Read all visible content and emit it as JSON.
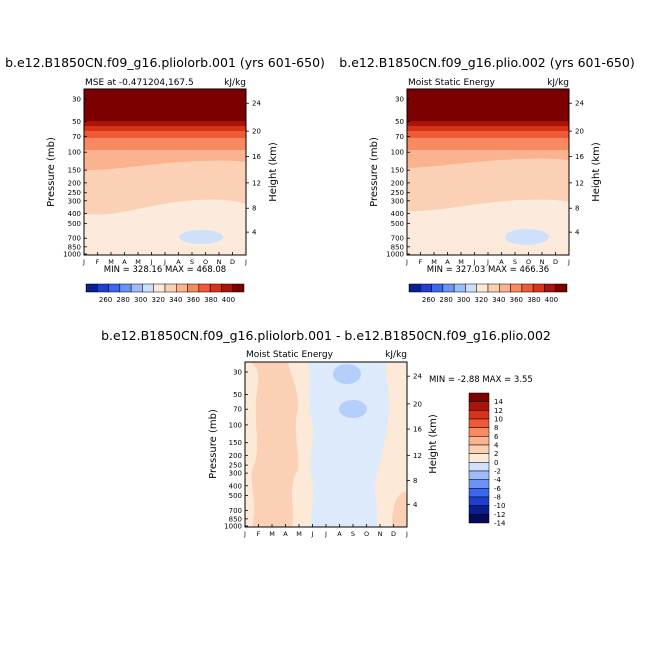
{
  "chart_data": [
    {
      "type": "heatmap",
      "title": "b.e12.B1850CN.f09_g16.pliolorb.001 (yrs 601-650)",
      "subtitle_left": "MSE at -0.471204,167.5",
      "subtitle_right": "kJ/kg",
      "xlabel": "",
      "ylabel": "Pressure (mb)",
      "ylabel_right": "Height (km)",
      "x_ticks": [
        "J",
        "F",
        "M",
        "A",
        "M",
        "J",
        "J",
        "A",
        "S",
        "O",
        "N",
        "D",
        "J"
      ],
      "y_ticks": [
        "30",
        "50",
        "70",
        "100",
        "150",
        "200",
        "250",
        "300",
        "400",
        "500",
        "700",
        "850",
        "1000"
      ],
      "y_ticks_right": [
        "24",
        "20",
        "16",
        "12",
        "8",
        "4"
      ],
      "minmax_text": "MIN = 328.16  MAX = 468.08",
      "legend_levels": [
        "260",
        "280",
        "300",
        "320",
        "340",
        "360",
        "380",
        "400"
      ],
      "variable": "Moist Static Energy"
    },
    {
      "type": "heatmap",
      "title": "b.e12.B1850CN.f09_g16.plio.002 (yrs 601-650)",
      "subtitle_left": "Moist Static Energy",
      "subtitle_right": "kJ/kg",
      "xlabel": "",
      "ylabel": "Pressure (mb)",
      "ylabel_right": "Height (km)",
      "x_ticks": [
        "J",
        "F",
        "M",
        "A",
        "M",
        "J",
        "J",
        "A",
        "S",
        "O",
        "N",
        "D",
        "J"
      ],
      "y_ticks": [
        "30",
        "50",
        "70",
        "100",
        "150",
        "200",
        "250",
        "300",
        "400",
        "500",
        "700",
        "850",
        "1000"
      ],
      "y_ticks_right": [
        "24",
        "20",
        "16",
        "12",
        "8",
        "4"
      ],
      "minmax_text": "MIN = 327.03  MAX = 466.36",
      "legend_levels": [
        "260",
        "280",
        "300",
        "320",
        "340",
        "360",
        "380",
        "400"
      ],
      "variable": "Moist Static Energy"
    },
    {
      "type": "heatmap",
      "title": "b.e12.B1850CN.f09_g16.pliolorb.001 - b.e12.B1850CN.f09_g16.plio.002",
      "subtitle_left": "Moist Static Energy",
      "subtitle_right": "kJ/kg",
      "xlabel": "",
      "ylabel": "Pressure (mb)",
      "ylabel_right": "Height (km)",
      "x_ticks": [
        "J",
        "F",
        "M",
        "A",
        "M",
        "J",
        "J",
        "A",
        "S",
        "O",
        "N",
        "D",
        "J"
      ],
      "y_ticks": [
        "30",
        "50",
        "70",
        "100",
        "150",
        "200",
        "250",
        "300",
        "400",
        "500",
        "700",
        "850",
        "1000"
      ],
      "y_ticks_right": [
        "24",
        "20",
        "16",
        "12",
        "8",
        "4"
      ],
      "minmax_text": "MIN =   -2.88  MAX =     3.55",
      "legend_levels": [
        "14",
        "12",
        "10",
        "8",
        "6",
        "4",
        "2",
        "0",
        "-2",
        "-4",
        "-6",
        "-8",
        "-10",
        "-12",
        "-14"
      ]
    }
  ],
  "colors": {
    "abs_scale": [
      "#0a1f8f",
      "#1f3fd0",
      "#3a66f0",
      "#6a93f5",
      "#9cbdf8",
      "#cfe0fb",
      "#fde9d8",
      "#fcd0b4",
      "#fbb28e",
      "#f88a62",
      "#ef5a36",
      "#d8321a",
      "#a81409",
      "#7d0000"
    ],
    "diff_scale": [
      "#7d0000",
      "#a81409",
      "#d8321a",
      "#ef5a36",
      "#f88a62",
      "#fbb28e",
      "#fcd0b4",
      "#fde9d8",
      "#cfe0fb",
      "#9cbdf8",
      "#6a93f5",
      "#3a66f0",
      "#1f3fd0",
      "#0a1f8f",
      "#040b5a"
    ]
  }
}
